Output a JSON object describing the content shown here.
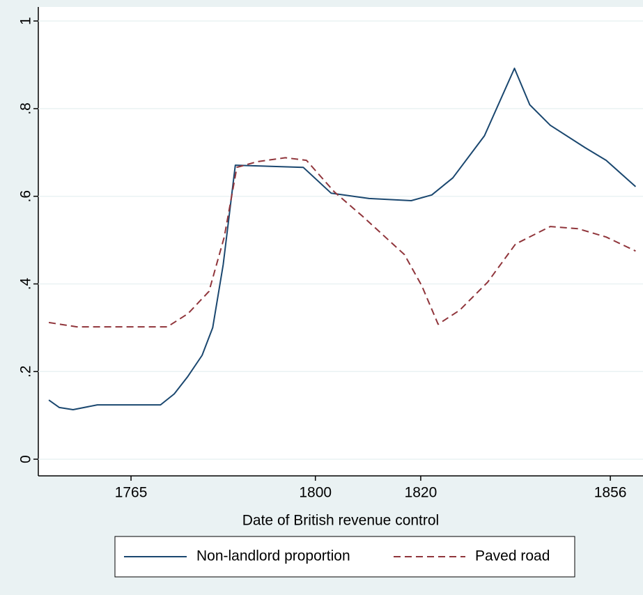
{
  "chart_data": {
    "type": "line",
    "xlabel": "Date of British revenue control",
    "xlim": [
      1747.4,
      1862.2
    ],
    "xticks": [
      1765,
      1800,
      1820,
      1856
    ],
    "ylim": [
      -0.038,
      1.032
    ],
    "yticks": [
      0,
      {
        "value": 0.2,
        "label": ".2"
      },
      {
        "value": 0.4,
        "label": ".4"
      },
      {
        "value": 0.6,
        "label": ".6"
      },
      {
        "value": 0.8,
        "label": ".8"
      },
      1
    ],
    "grid": true,
    "legend": "bottom",
    "series": [
      {
        "name": "Non-landlord proportion",
        "color": "#1a476f",
        "dash": "solid",
        "x": [
          1749.4,
          1751.4,
          1754.0,
          1758.6,
          1770.6,
          1773.2,
          1775.8,
          1778.5,
          1780.5,
          1782.5,
          1784.8,
          1797.7,
          1803.0,
          1810.2,
          1818.2,
          1822.1,
          1826.1,
          1832.1,
          1837.8,
          1840.7,
          1844.6,
          1851.2,
          1855.2,
          1860.8
        ],
        "values": [
          0.135,
          0.118,
          0.113,
          0.124,
          0.124,
          0.149,
          0.189,
          0.237,
          0.3,
          0.444,
          0.671,
          0.666,
          0.607,
          0.595,
          0.59,
          0.603,
          0.642,
          0.738,
          0.892,
          0.809,
          0.762,
          0.711,
          0.682,
          0.622
        ]
      },
      {
        "name": "Paved road",
        "color": "#90353b",
        "dash": "dashed",
        "x": [
          1749.4,
          1754.7,
          1771.9,
          1775.8,
          1779.8,
          1782.7,
          1785.1,
          1789.0,
          1794.3,
          1798.3,
          1803.6,
          1808.9,
          1816.9,
          1820.2,
          1823.3,
          1827.4,
          1832.7,
          1838.0,
          1844.6,
          1849.9,
          1855.2,
          1860.8
        ],
        "values": [
          0.312,
          0.302,
          0.302,
          0.332,
          0.383,
          0.507,
          0.666,
          0.679,
          0.688,
          0.682,
          0.61,
          0.555,
          0.467,
          0.396,
          0.308,
          0.34,
          0.404,
          0.491,
          0.531,
          0.526,
          0.507,
          0.475
        ]
      }
    ]
  }
}
